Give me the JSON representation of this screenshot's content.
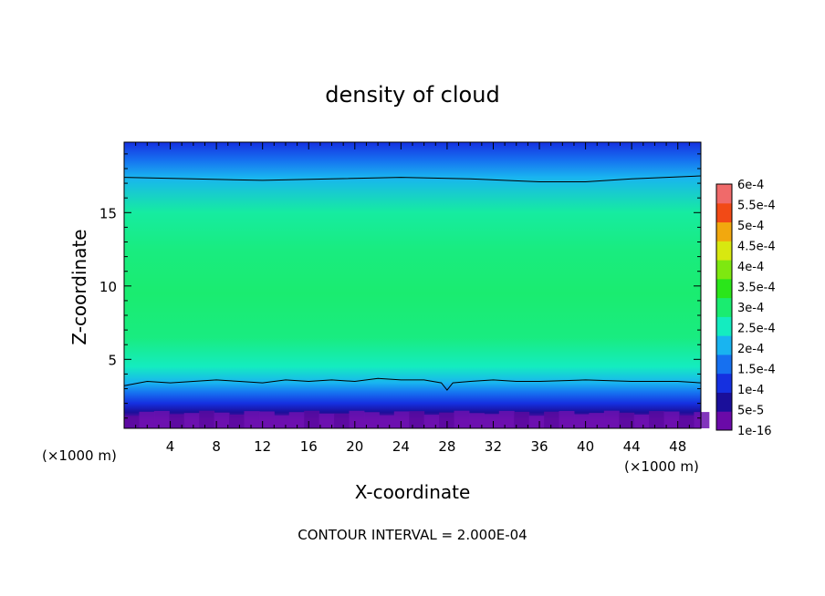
{
  "chart_data": {
    "type": "heatmap",
    "title": "density of cloud",
    "xlabel": "X-coordinate",
    "ylabel": "Z-coordinate",
    "x_unit_label_left": "(×1000 m)",
    "x_unit_label_right": "(×1000 m)",
    "xlim": [
      0,
      50
    ],
    "ylim": [
      0.3,
      19.8
    ],
    "x_ticks": [
      4,
      8,
      12,
      16,
      20,
      24,
      28,
      32,
      36,
      40,
      44,
      48
    ],
    "y_ticks": [
      5,
      10,
      15
    ],
    "contour_interval_text": "CONTOUR INTERVAL = 2.000E-04",
    "colorbar": {
      "labels": [
        "1e-16",
        "5e-5",
        "1e-4",
        "1.5e-4",
        "2e-4",
        "2.5e-4",
        "3e-4",
        "3.5e-4",
        "4e-4",
        "4.5e-4",
        "5e-4",
        "5.5e-4",
        "6e-4"
      ],
      "colors": [
        "#6a0aa8",
        "#1a0f9a",
        "#1530e0",
        "#1670f0",
        "#19b4f0",
        "#14ecc0",
        "#1aec70",
        "#2ae61a",
        "#7ee810",
        "#d8e810",
        "#f2a80e",
        "#f24a16",
        "#f06a6a"
      ]
    },
    "contour_lines": [
      {
        "value": "2e-4 (upper)",
        "points": [
          [
            0,
            17.4
          ],
          [
            6,
            17.3
          ],
          [
            12,
            17.2
          ],
          [
            18,
            17.3
          ],
          [
            24,
            17.4
          ],
          [
            30,
            17.3
          ],
          [
            36,
            17.1
          ],
          [
            40,
            17.1
          ],
          [
            44,
            17.3
          ],
          [
            50,
            17.5
          ]
        ]
      },
      {
        "value": "2e-4 (lower)",
        "points": [
          [
            0,
            3.2
          ],
          [
            2,
            3.5
          ],
          [
            4,
            3.4
          ],
          [
            6,
            3.5
          ],
          [
            8,
            3.6
          ],
          [
            10,
            3.5
          ],
          [
            12,
            3.4
          ],
          [
            14,
            3.6
          ],
          [
            16,
            3.5
          ],
          [
            18,
            3.6
          ],
          [
            20,
            3.5
          ],
          [
            22,
            3.7
          ],
          [
            24,
            3.6
          ],
          [
            26,
            3.6
          ],
          [
            27.5,
            3.4
          ],
          [
            28,
            2.9
          ],
          [
            28.5,
            3.4
          ],
          [
            30,
            3.5
          ],
          [
            32,
            3.6
          ],
          [
            34,
            3.5
          ],
          [
            36,
            3.5
          ],
          [
            40,
            3.6
          ],
          [
            44,
            3.5
          ],
          [
            48,
            3.5
          ],
          [
            50,
            3.4
          ]
        ]
      }
    ],
    "field_profile": [
      {
        "z": 0.3,
        "value": 0.0
      },
      {
        "z": 0.9,
        "value": 0.0
      },
      {
        "z": 1.4,
        "value": 5e-05
      },
      {
        "z": 2.0,
        "value": 0.0001
      },
      {
        "z": 2.7,
        "value": 0.00015
      },
      {
        "z": 3.4,
        "value": 0.0002
      },
      {
        "z": 4.5,
        "value": 0.00025
      },
      {
        "z": 6.5,
        "value": 0.00029
      },
      {
        "z": 9.5,
        "value": 0.0003
      },
      {
        "z": 12.5,
        "value": 0.00029
      },
      {
        "z": 15.0,
        "value": 0.00027
      },
      {
        "z": 17.4,
        "value": 0.0002
      },
      {
        "z": 18.6,
        "value": 0.00015
      },
      {
        "z": 19.8,
        "value": 0.0001
      }
    ]
  }
}
